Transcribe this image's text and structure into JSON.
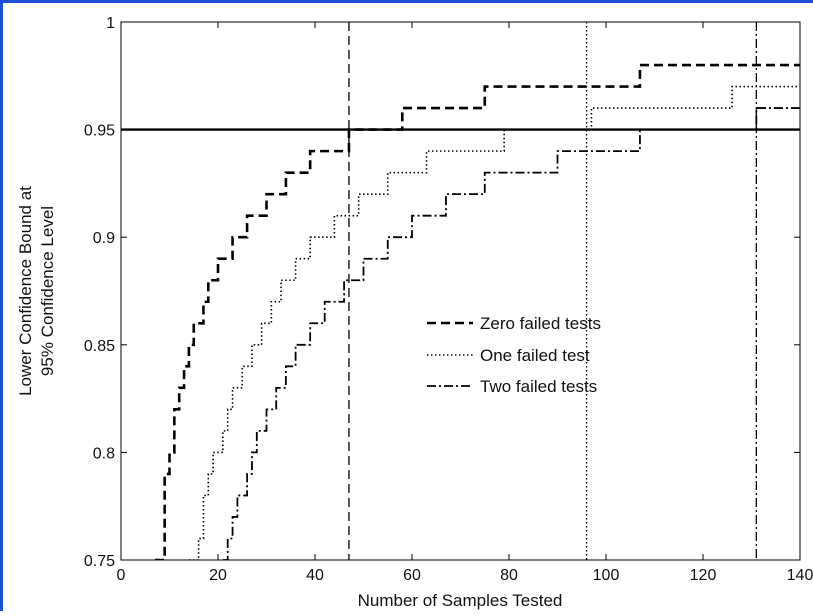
{
  "chart_data": {
    "type": "line",
    "xlabel": "Number of Samples Tested",
    "ylabel_lines": [
      "Lower Confidence Bound at",
      "95% Confidence Level"
    ],
    "xlim": [
      0,
      140
    ],
    "ylim": [
      0.75,
      1
    ],
    "x_ticks": [
      0,
      20,
      40,
      60,
      80,
      100,
      120,
      140
    ],
    "y_ticks": [
      0.75,
      0.8,
      0.85,
      0.9,
      0.95,
      1
    ],
    "y_tick_labels": [
      "0.75",
      "0.8",
      "0.85",
      "0.9",
      "0.95",
      "1"
    ],
    "legend_placement": "center-right",
    "reference_line": {
      "y": 0.95
    },
    "series": [
      {
        "name": "Zero failed tests",
        "style": "dashed",
        "threshold_x": 47,
        "x": [
          7,
          8,
          9,
          10,
          11,
          12,
          13,
          14,
          15,
          16,
          17,
          18,
          19,
          20,
          21,
          22,
          23,
          24,
          25,
          26,
          27,
          28,
          29,
          30,
          31,
          32,
          33,
          34,
          35,
          36,
          37,
          38,
          39,
          40,
          41,
          42,
          43,
          44,
          45,
          46,
          47,
          48,
          49,
          50,
          51,
          52,
          53,
          54,
          55,
          56,
          57,
          58,
          59,
          60,
          61,
          62,
          63,
          64,
          65,
          66,
          67,
          68,
          69,
          70,
          71,
          72,
          73,
          74,
          75,
          80,
          85,
          90,
          95,
          100,
          105,
          106,
          107,
          110,
          120,
          130,
          140
        ],
        "values": [
          0.75,
          0.75,
          0.79,
          0.8,
          0.82,
          0.83,
          0.84,
          0.85,
          0.86,
          0.86,
          0.87,
          0.88,
          0.88,
          0.89,
          0.89,
          0.89,
          0.9,
          0.9,
          0.9,
          0.91,
          0.91,
          0.91,
          0.91,
          0.92,
          0.92,
          0.92,
          0.92,
          0.93,
          0.93,
          0.93,
          0.93,
          0.93,
          0.94,
          0.94,
          0.94,
          0.94,
          0.94,
          0.94,
          0.94,
          0.94,
          0.95,
          0.95,
          0.95,
          0.95,
          0.95,
          0.95,
          0.95,
          0.95,
          0.95,
          0.95,
          0.95,
          0.96,
          0.96,
          0.96,
          0.96,
          0.96,
          0.96,
          0.96,
          0.96,
          0.96,
          0.96,
          0.96,
          0.96,
          0.96,
          0.96,
          0.96,
          0.96,
          0.96,
          0.97,
          0.97,
          0.97,
          0.97,
          0.97,
          0.97,
          0.97,
          0.97,
          0.98,
          0.98,
          0.98,
          0.98,
          0.98
        ]
      },
      {
        "name": "One failed test",
        "style": "dotted",
        "threshold_x": 96,
        "x": [
          14,
          15,
          16,
          17,
          18,
          19,
          20,
          21,
          22,
          23,
          24,
          25,
          26,
          27,
          28,
          29,
          30,
          31,
          32,
          33,
          34,
          35,
          36,
          37,
          38,
          39,
          40,
          41,
          42,
          43,
          44,
          45,
          46,
          47,
          48,
          49,
          50,
          51,
          52,
          53,
          54,
          55,
          56,
          57,
          58,
          59,
          60,
          61,
          62,
          63,
          64,
          65,
          66,
          67,
          68,
          69,
          70,
          71,
          72,
          73,
          74,
          75,
          76,
          77,
          78,
          79,
          80,
          90,
          95,
          96,
          97,
          100,
          110,
          120,
          125,
          126,
          130,
          140
        ],
        "values": [
          0.75,
          0.75,
          0.76,
          0.78,
          0.79,
          0.8,
          0.8,
          0.81,
          0.82,
          0.83,
          0.83,
          0.84,
          0.84,
          0.85,
          0.85,
          0.86,
          0.86,
          0.87,
          0.87,
          0.88,
          0.88,
          0.88,
          0.89,
          0.89,
          0.89,
          0.9,
          0.9,
          0.9,
          0.9,
          0.9,
          0.91,
          0.91,
          0.91,
          0.91,
          0.91,
          0.92,
          0.92,
          0.92,
          0.92,
          0.92,
          0.92,
          0.93,
          0.93,
          0.93,
          0.93,
          0.93,
          0.93,
          0.93,
          0.93,
          0.94,
          0.94,
          0.94,
          0.94,
          0.94,
          0.94,
          0.94,
          0.94,
          0.94,
          0.94,
          0.94,
          0.94,
          0.94,
          0.94,
          0.94,
          0.94,
          0.95,
          0.95,
          0.95,
          0.95,
          0.95,
          0.96,
          0.96,
          0.96,
          0.96,
          0.96,
          0.97,
          0.97,
          0.97
        ]
      },
      {
        "name": "Two failed tests",
        "style": "dashdot",
        "threshold_x": 131,
        "x": [
          21,
          22,
          23,
          24,
          25,
          26,
          27,
          28,
          29,
          30,
          31,
          32,
          33,
          34,
          35,
          36,
          37,
          38,
          39,
          40,
          41,
          42,
          43,
          44,
          45,
          46,
          47,
          48,
          49,
          50,
          51,
          52,
          53,
          54,
          55,
          56,
          57,
          58,
          59,
          60,
          61,
          62,
          63,
          64,
          65,
          66,
          67,
          68,
          69,
          70,
          71,
          72,
          73,
          74,
          75,
          76,
          77,
          78,
          79,
          80,
          85,
          90,
          100,
          105,
          106,
          107,
          110,
          120,
          130,
          131,
          140
        ],
        "values": [
          0.75,
          0.76,
          0.77,
          0.78,
          0.78,
          0.79,
          0.8,
          0.81,
          0.81,
          0.82,
          0.82,
          0.83,
          0.83,
          0.84,
          0.84,
          0.85,
          0.85,
          0.85,
          0.86,
          0.86,
          0.86,
          0.87,
          0.87,
          0.87,
          0.87,
          0.88,
          0.88,
          0.88,
          0.88,
          0.89,
          0.89,
          0.89,
          0.89,
          0.89,
          0.9,
          0.9,
          0.9,
          0.9,
          0.9,
          0.91,
          0.91,
          0.91,
          0.91,
          0.91,
          0.91,
          0.91,
          0.92,
          0.92,
          0.92,
          0.92,
          0.92,
          0.92,
          0.92,
          0.92,
          0.93,
          0.93,
          0.93,
          0.93,
          0.93,
          0.93,
          0.93,
          0.94,
          0.94,
          0.94,
          0.94,
          0.95,
          0.95,
          0.95,
          0.95,
          0.96,
          0.96
        ]
      }
    ]
  }
}
